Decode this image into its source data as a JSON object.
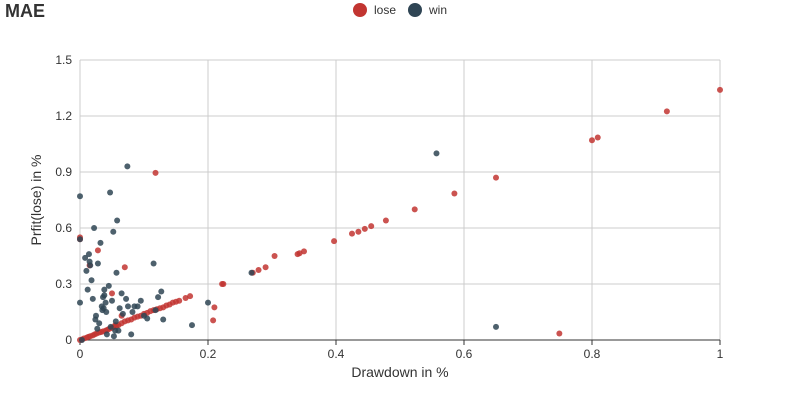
{
  "chart_data": {
    "type": "scatter",
    "title": "MAE",
    "xlabel": "Drawdown in %",
    "ylabel": "Prfit(lose) in %",
    "xlim": [
      0,
      1
    ],
    "ylim": [
      0,
      1.5
    ],
    "xticks": [
      "0",
      "0.2",
      "0.4",
      "0.6",
      "0.8",
      "1"
    ],
    "yticks": [
      "0",
      "0.3",
      "0.6",
      "0.9",
      "1.2",
      "1.5"
    ],
    "grid": true,
    "legend_position": "top-center",
    "series": [
      {
        "name": "lose",
        "color": "#c23531",
        "points": [
          [
            0.0,
            0.0
          ],
          [
            0.003,
            0.003
          ],
          [
            0.006,
            0.008
          ],
          [
            0.01,
            0.012
          ],
          [
            0.013,
            0.017
          ],
          [
            0.016,
            0.02
          ],
          [
            0.02,
            0.025
          ],
          [
            0.023,
            0.03
          ],
          [
            0.026,
            0.035
          ],
          [
            0.03,
            0.04
          ],
          [
            0.033,
            0.043
          ],
          [
            0.036,
            0.046
          ],
          [
            0.04,
            0.05
          ],
          [
            0.043,
            0.055
          ],
          [
            0.046,
            0.06
          ],
          [
            0.05,
            0.065
          ],
          [
            0.053,
            0.07
          ],
          [
            0.057,
            0.075
          ],
          [
            0.06,
            0.08
          ],
          [
            0.065,
            0.09
          ],
          [
            0.07,
            0.1
          ],
          [
            0.075,
            0.105
          ],
          [
            0.08,
            0.11
          ],
          [
            0.085,
            0.12
          ],
          [
            0.09,
            0.125
          ],
          [
            0.095,
            0.13
          ],
          [
            0.1,
            0.14
          ],
          [
            0.105,
            0.145
          ],
          [
            0.11,
            0.155
          ],
          [
            0.115,
            0.16
          ],
          [
            0.12,
            0.165
          ],
          [
            0.125,
            0.17
          ],
          [
            0.13,
            0.175
          ],
          [
            0.135,
            0.185
          ],
          [
            0.14,
            0.19
          ],
          [
            0.145,
            0.2
          ],
          [
            0.15,
            0.205
          ],
          [
            0.155,
            0.21
          ],
          [
            0.165,
            0.225
          ],
          [
            0.172,
            0.235
          ],
          [
            0.0,
            0.55
          ],
          [
            0.0,
            0.54
          ],
          [
            0.015,
            0.4
          ],
          [
            0.028,
            0.48
          ],
          [
            0.05,
            0.25
          ],
          [
            0.065,
            0.13
          ],
          [
            0.07,
            0.39
          ],
          [
            0.055,
            0.08
          ],
          [
            0.118,
            0.895
          ],
          [
            0.208,
            0.105
          ],
          [
            0.21,
            0.175
          ],
          [
            0.222,
            0.3
          ],
          [
            0.224,
            0.3
          ],
          [
            0.27,
            0.36
          ],
          [
            0.279,
            0.375
          ],
          [
            0.29,
            0.39
          ],
          [
            0.304,
            0.45
          ],
          [
            0.34,
            0.46
          ],
          [
            0.343,
            0.465
          ],
          [
            0.35,
            0.475
          ],
          [
            0.397,
            0.53
          ],
          [
            0.425,
            0.57
          ],
          [
            0.435,
            0.58
          ],
          [
            0.445,
            0.595
          ],
          [
            0.455,
            0.61
          ],
          [
            0.478,
            0.64
          ],
          [
            0.523,
            0.7
          ],
          [
            0.585,
            0.785
          ],
          [
            0.65,
            0.87
          ],
          [
            0.749,
            0.035
          ],
          [
            0.8,
            1.07
          ],
          [
            0.809,
            1.085
          ],
          [
            0.917,
            1.225
          ],
          [
            1.0,
            1.34
          ]
        ]
      },
      {
        "name": "win",
        "color": "#2f4554",
        "points": [
          [
            0.0,
            0.77
          ],
          [
            0.0,
            0.54
          ],
          [
            0.0,
            0.2
          ],
          [
            0.003,
            0.0
          ],
          [
            0.008,
            0.44
          ],
          [
            0.01,
            0.37
          ],
          [
            0.012,
            0.27
          ],
          [
            0.014,
            0.46
          ],
          [
            0.015,
            0.42
          ],
          [
            0.016,
            0.4
          ],
          [
            0.018,
            0.32
          ],
          [
            0.02,
            0.22
          ],
          [
            0.022,
            0.6
          ],
          [
            0.024,
            0.11
          ],
          [
            0.025,
            0.13
          ],
          [
            0.027,
            0.06
          ],
          [
            0.028,
            0.41
          ],
          [
            0.03,
            0.09
          ],
          [
            0.032,
            0.52
          ],
          [
            0.034,
            0.18
          ],
          [
            0.035,
            0.16
          ],
          [
            0.036,
            0.23
          ],
          [
            0.037,
            0.17
          ],
          [
            0.038,
            0.24
          ],
          [
            0.038,
            0.27
          ],
          [
            0.04,
            0.2
          ],
          [
            0.041,
            0.15
          ],
          [
            0.042,
            0.03
          ],
          [
            0.045,
            0.29
          ],
          [
            0.047,
            0.79
          ],
          [
            0.048,
            0.07
          ],
          [
            0.05,
            0.21
          ],
          [
            0.052,
            0.58
          ],
          [
            0.053,
            0.02
          ],
          [
            0.055,
            0.05
          ],
          [
            0.056,
            0.1
          ],
          [
            0.057,
            0.36
          ],
          [
            0.058,
            0.64
          ],
          [
            0.06,
            0.05
          ],
          [
            0.062,
            0.17
          ],
          [
            0.065,
            0.25
          ],
          [
            0.067,
            0.14
          ],
          [
            0.072,
            0.22
          ],
          [
            0.074,
            0.93
          ],
          [
            0.075,
            0.18
          ],
          [
            0.08,
            0.03
          ],
          [
            0.082,
            0.15
          ],
          [
            0.085,
            0.18
          ],
          [
            0.09,
            0.18
          ],
          [
            0.095,
            0.21
          ],
          [
            0.1,
            0.13
          ],
          [
            0.105,
            0.115
          ],
          [
            0.115,
            0.41
          ],
          [
            0.118,
            0.16
          ],
          [
            0.122,
            0.23
          ],
          [
            0.127,
            0.26
          ],
          [
            0.13,
            0.11
          ],
          [
            0.175,
            0.08
          ],
          [
            0.2,
            0.2
          ],
          [
            0.268,
            0.36
          ],
          [
            0.557,
            1.0
          ],
          [
            0.65,
            0.07
          ]
        ]
      }
    ]
  }
}
